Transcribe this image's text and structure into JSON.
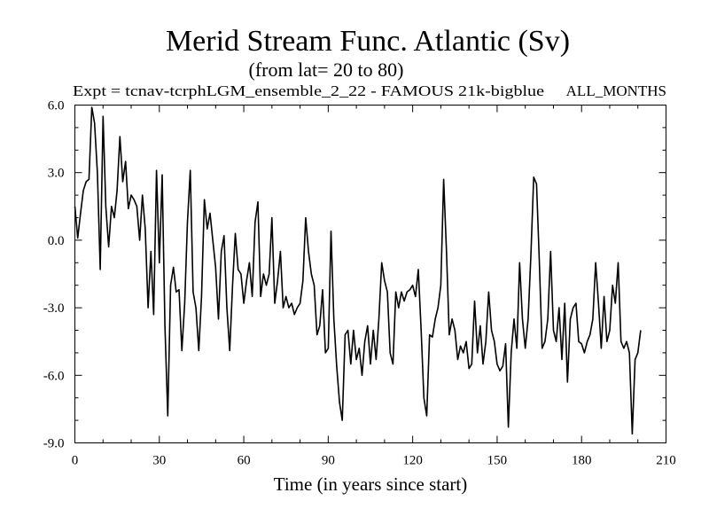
{
  "chart_data": {
    "type": "line",
    "title": "Merid Stream Func. Atlantic (Sv)",
    "subtitle": "(from lat= 20 to 80)",
    "experiment_label": "Expt = tcnav-tcrphLGM_ensemble_2_22 - FAMOUS 21k-bigblue",
    "season_label": "ALL_MONTHS",
    "xlabel": "Time (in years since start)",
    "ylabel": "",
    "xlim": [
      0,
      210
    ],
    "ylim": [
      -9.0,
      6.0
    ],
    "x_ticks": [
      0,
      30,
      60,
      90,
      120,
      150,
      180,
      210
    ],
    "x_tick_labels": [
      "0",
      "30",
      "60",
      "90",
      "120",
      "150",
      "180",
      "210"
    ],
    "y_ticks": [
      6.0,
      3.0,
      0.0,
      -3.0,
      -6.0,
      -9.0
    ],
    "y_tick_labels": [
      "6.0",
      "3.0",
      "0.0",
      "-3.0",
      "-6.0",
      "-9.0"
    ],
    "grid": false,
    "series": [
      {
        "name": "Merid Stream Func. Atlantic",
        "color": "#000000",
        "x_start": 0,
        "x_step": 1,
        "values": [
          1.5,
          0.1,
          1.2,
          2.2,
          2.6,
          2.7,
          5.9,
          5.2,
          3.0,
          -1.3,
          5.5,
          1.5,
          -0.3,
          1.5,
          1.0,
          2.2,
          4.6,
          2.6,
          3.5,
          1.4,
          2.0,
          1.8,
          1.5,
          0.0,
          2.0,
          0.5,
          -3.0,
          -0.5,
          -3.3,
          3.1,
          -1.0,
          2.9,
          -3.8,
          -7.8,
          -2.0,
          -1.2,
          -2.3,
          -2.2,
          -4.9,
          -2.8,
          0.8,
          3.1,
          -2.3,
          -3.0,
          -4.9,
          -2.5,
          1.8,
          0.5,
          1.2,
          0.0,
          -1.2,
          -3.5,
          -0.5,
          0.2,
          -3.0,
          -4.9,
          -2.0,
          0.3,
          -1.3,
          -1.5,
          -2.8,
          -1.8,
          -1.0,
          -2.5,
          0.8,
          1.7,
          -2.5,
          -1.5,
          -2.0,
          -1.5,
          1.0,
          -2.8,
          -1.8,
          -0.5,
          -3.0,
          -2.5,
          -3.0,
          -2.8,
          -3.3,
          -3.0,
          -2.8,
          -1.8,
          1.0,
          -0.5,
          -1.5,
          -2.0,
          -4.2,
          -3.8,
          -2.2,
          -5.0,
          -4.8,
          0.4,
          -3.5,
          -5.6,
          -7.2,
          -8.0,
          -4.2,
          -4.0,
          -5.5,
          -4.0,
          -5.3,
          -4.8,
          -6.0,
          -4.5,
          -3.8,
          -5.5,
          -4.0,
          -5.3,
          -3.5,
          -1.0,
          -1.8,
          -2.3,
          -5.0,
          -5.5,
          -2.3,
          -3.0,
          -2.3,
          -2.7,
          -2.3,
          -2.2,
          -2.0,
          -2.5,
          -1.3,
          -4.0,
          -7.0,
          -7.8,
          -4.2,
          -4.3,
          -3.5,
          -3.0,
          -2.0,
          2.7,
          -0.5,
          -4.2,
          -3.5,
          -4.0,
          -5.3,
          -4.7,
          -5.0,
          -4.5,
          -5.7,
          -5.5,
          -2.7,
          -5.0,
          -3.8,
          -5.5,
          -4.5,
          -2.3,
          -4.0,
          -4.5,
          -5.5,
          -5.8,
          -5.6,
          -4.6,
          -8.3,
          -5.0,
          -3.5,
          -4.8,
          -1.0,
          -3.5,
          -4.8,
          -3.5,
          -0.7,
          2.8,
          2.5,
          -1.0,
          -4.8,
          -4.5,
          -3.5,
          -0.5,
          -4.0,
          -4.5,
          -3.0,
          -5.3,
          -2.8,
          -6.3,
          -3.5,
          -3.0,
          -2.8,
          -4.5,
          -4.6,
          -5.0,
          -4.5,
          -4.2,
          -3.5,
          -1.0,
          -2.8,
          -4.8,
          -2.5,
          -4.5,
          -4.0,
          -2.0,
          -2.8,
          -1.0,
          -4.5,
          -4.8,
          -4.5,
          -5.0,
          -8.6,
          -5.3,
          -5.0,
          -4.0
        ]
      }
    ]
  }
}
